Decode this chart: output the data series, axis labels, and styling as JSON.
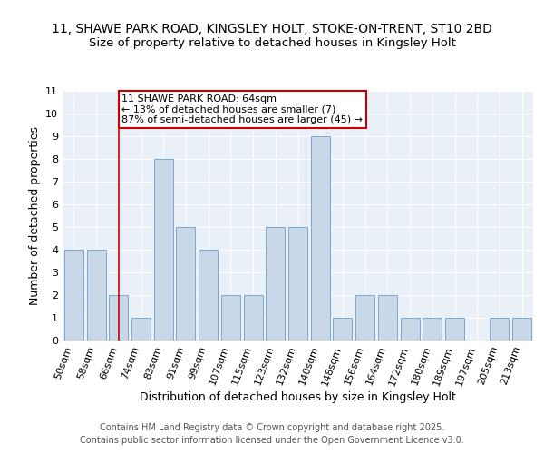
{
  "title1": "11, SHAWE PARK ROAD, KINGSLEY HOLT, STOKE-ON-TRENT, ST10 2BD",
  "title2": "Size of property relative to detached houses in Kingsley Holt",
  "xlabel": "Distribution of detached houses by size in Kingsley Holt",
  "ylabel": "Number of detached properties",
  "categories": [
    "50sqm",
    "58sqm",
    "66sqm",
    "74sqm",
    "83sqm",
    "91sqm",
    "99sqm",
    "107sqm",
    "115sqm",
    "123sqm",
    "132sqm",
    "140sqm",
    "148sqm",
    "156sqm",
    "164sqm",
    "172sqm",
    "180sqm",
    "189sqm",
    "197sqm",
    "205sqm",
    "213sqm"
  ],
  "values": [
    4,
    4,
    2,
    1,
    8,
    5,
    4,
    2,
    2,
    5,
    5,
    9,
    1,
    2,
    2,
    1,
    1,
    1,
    0,
    1,
    1
  ],
  "bar_color": "#c8d8e8",
  "bar_edge_color": "#7aa8cc",
  "highlight_bar_index": 2,
  "vline_color": "#cc0000",
  "annotation_text": "11 SHAWE PARK ROAD: 64sqm\n← 13% of detached houses are smaller (7)\n87% of semi-detached houses are larger (45) →",
  "annotation_box_color": "white",
  "annotation_box_edge_color": "#cc0000",
  "footer": "Contains HM Land Registry data © Crown copyright and database right 2025.\nContains public sector information licensed under the Open Government Licence v3.0.",
  "ylim": [
    0,
    11
  ],
  "yticks": [
    0,
    1,
    2,
    3,
    4,
    5,
    6,
    7,
    8,
    9,
    10,
    11
  ],
  "bg_color": "#eaf0f8",
  "title_fontsize": 10,
  "subtitle_fontsize": 9.5,
  "axis_fontsize": 9,
  "tick_fontsize": 8,
  "footer_fontsize": 7,
  "annotation_fontsize": 8
}
